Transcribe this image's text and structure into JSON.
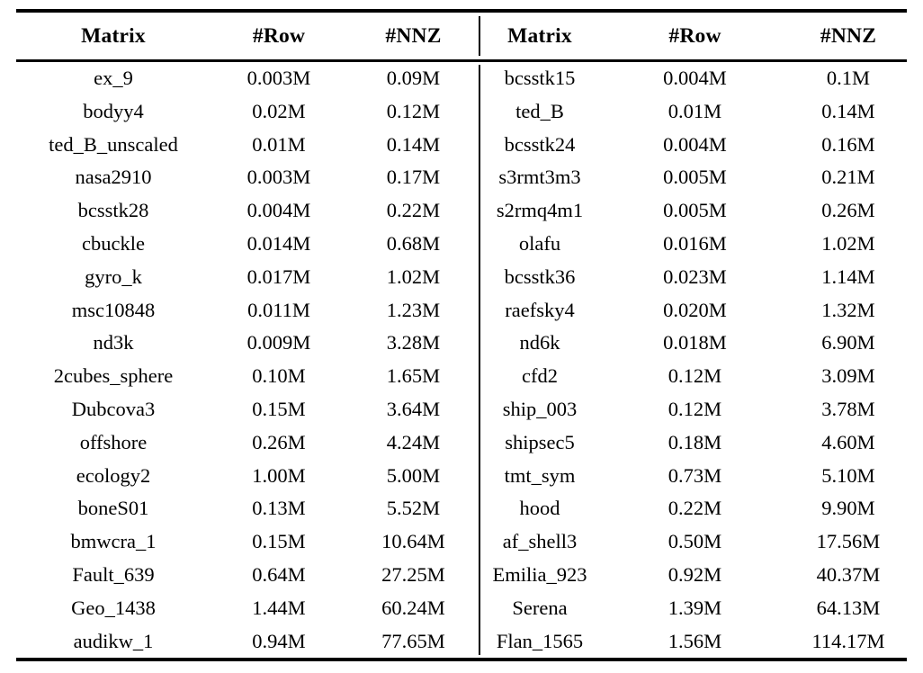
{
  "table": {
    "colors": {
      "text": "#000000",
      "rule": "#000000",
      "background": "#ffffff"
    },
    "left": {
      "headers": [
        "Matrix",
        "#Row",
        "#NNZ"
      ],
      "rows": [
        {
          "matrix": "ex_9",
          "row": "0.003M",
          "nnz": "0.09M"
        },
        {
          "matrix": "bodyy4",
          "row": "0.02M",
          "nnz": "0.12M"
        },
        {
          "matrix": "ted_B_unscaled",
          "row": "0.01M",
          "nnz": "0.14M"
        },
        {
          "matrix": "nasa2910",
          "row": "0.003M",
          "nnz": "0.17M"
        },
        {
          "matrix": "bcsstk28",
          "row": "0.004M",
          "nnz": "0.22M"
        },
        {
          "matrix": "cbuckle",
          "row": "0.014M",
          "nnz": "0.68M"
        },
        {
          "matrix": "gyro_k",
          "row": "0.017M",
          "nnz": "1.02M"
        },
        {
          "matrix": "msc10848",
          "row": "0.011M",
          "nnz": "1.23M"
        },
        {
          "matrix": "nd3k",
          "row": "0.009M",
          "nnz": "3.28M"
        },
        {
          "matrix": "2cubes_sphere",
          "row": "0.10M",
          "nnz": "1.65M"
        },
        {
          "matrix": "Dubcova3",
          "row": "0.15M",
          "nnz": "3.64M"
        },
        {
          "matrix": "offshore",
          "row": "0.26M",
          "nnz": "4.24M"
        },
        {
          "matrix": "ecology2",
          "row": "1.00M",
          "nnz": "5.00M"
        },
        {
          "matrix": "boneS01",
          "row": "0.13M",
          "nnz": "5.52M"
        },
        {
          "matrix": "bmwcra_1",
          "row": "0.15M",
          "nnz": "10.64M"
        },
        {
          "matrix": "Fault_639",
          "row": "0.64M",
          "nnz": "27.25M"
        },
        {
          "matrix": "Geo_1438",
          "row": "1.44M",
          "nnz": "60.24M"
        },
        {
          "matrix": "audikw_1",
          "row": "0.94M",
          "nnz": "77.65M"
        }
      ]
    },
    "right": {
      "headers": [
        "Matrix",
        "#Row",
        "#NNZ"
      ],
      "rows": [
        {
          "matrix": "bcsstk15",
          "row": "0.004M",
          "nnz": "0.1M"
        },
        {
          "matrix": "ted_B",
          "row": "0.01M",
          "nnz": "0.14M"
        },
        {
          "matrix": "bcsstk24",
          "row": "0.004M",
          "nnz": "0.16M"
        },
        {
          "matrix": "s3rmt3m3",
          "row": "0.005M",
          "nnz": "0.21M"
        },
        {
          "matrix": "s2rmq4m1",
          "row": "0.005M",
          "nnz": "0.26M"
        },
        {
          "matrix": "olafu",
          "row": "0.016M",
          "nnz": "1.02M"
        },
        {
          "matrix": "bcsstk36",
          "row": "0.023M",
          "nnz": "1.14M"
        },
        {
          "matrix": "raefsky4",
          "row": "0.020M",
          "nnz": "1.32M"
        },
        {
          "matrix": "nd6k",
          "row": "0.018M",
          "nnz": "6.90M"
        },
        {
          "matrix": "cfd2",
          "row": "0.12M",
          "nnz": "3.09M"
        },
        {
          "matrix": "ship_003",
          "row": "0.12M",
          "nnz": "3.78M"
        },
        {
          "matrix": "shipsec5",
          "row": "0.18M",
          "nnz": "4.60M"
        },
        {
          "matrix": "tmt_sym",
          "row": "0.73M",
          "nnz": "5.10M"
        },
        {
          "matrix": "hood",
          "row": "0.22M",
          "nnz": "9.90M"
        },
        {
          "matrix": "af_shell3",
          "row": "0.50M",
          "nnz": "17.56M"
        },
        {
          "matrix": "Emilia_923",
          "row": "0.92M",
          "nnz": "40.37M"
        },
        {
          "matrix": "Serena",
          "row": "1.39M",
          "nnz": "64.13M"
        },
        {
          "matrix": "Flan_1565",
          "row": "1.56M",
          "nnz": "114.17M"
        }
      ]
    }
  }
}
